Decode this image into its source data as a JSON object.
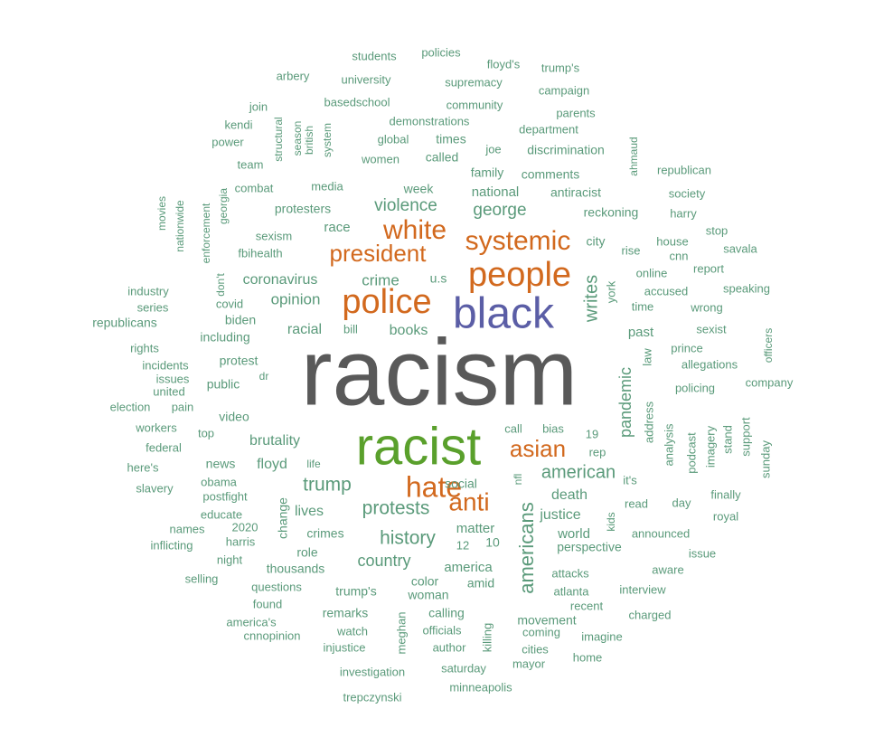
{
  "chart_data": {
    "type": "wordcloud",
    "colors": {
      "tier1": "#595959",
      "tier2": "#5aa02c",
      "tier3": "#5b5ea6",
      "tier4": "#d2691e",
      "small": "#5a9a7a"
    },
    "words": [
      {
        "text": "racism",
        "weight": 100,
        "tier": "tier1"
      },
      {
        "text": "racist",
        "weight": 60,
        "tier": "tier2"
      },
      {
        "text": "black",
        "weight": 52,
        "tier": "tier3"
      },
      {
        "text": "people",
        "weight": 40,
        "tier": "tier4"
      },
      {
        "text": "police",
        "weight": 40,
        "tier": "tier4"
      },
      {
        "text": "systemic",
        "weight": 33,
        "tier": "tier4"
      },
      {
        "text": "white",
        "weight": 33,
        "tier": "tier4"
      },
      {
        "text": "president",
        "weight": 28,
        "tier": "tier4"
      },
      {
        "text": "hate",
        "weight": 33,
        "tier": "tier4"
      },
      {
        "text": "anti",
        "weight": 30,
        "tier": "tier4"
      },
      {
        "text": "asian",
        "weight": 30,
        "tier": "tier4"
      },
      {
        "text": "american",
        "weight": 20,
        "tier": "small"
      },
      {
        "text": "americans",
        "weight": 22,
        "tier": "small"
      },
      {
        "text": "protests",
        "weight": 22,
        "tier": "small"
      },
      {
        "text": "history",
        "weight": 22,
        "tier": "small"
      },
      {
        "text": "trump",
        "weight": 22,
        "tier": "small"
      },
      {
        "text": "george",
        "weight": 20,
        "tier": "small"
      },
      {
        "text": "violence",
        "weight": 20,
        "tier": "small"
      },
      {
        "text": "writes",
        "weight": 20,
        "tier": "small"
      },
      {
        "text": "pandemic",
        "weight": 18,
        "tier": "small"
      },
      {
        "text": "country",
        "weight": 18,
        "tier": "small"
      },
      {
        "text": "crime",
        "weight": 18,
        "tier": "small"
      },
      {
        "text": "opinion",
        "weight": 18,
        "tier": "small"
      },
      {
        "text": "coronavirus",
        "weight": 18,
        "tier": "small"
      },
      {
        "text": "racial",
        "weight": 18,
        "tier": "small"
      },
      {
        "text": "books",
        "weight": 17,
        "tier": "small"
      },
      {
        "text": "brutality",
        "weight": 17,
        "tier": "small"
      },
      {
        "text": "floyd",
        "weight": 17,
        "tier": "small"
      },
      {
        "text": "lives",
        "weight": 17,
        "tier": "small"
      },
      {
        "text": "death",
        "weight": 17,
        "tier": "small"
      },
      {
        "text": "justice",
        "weight": 16,
        "tier": "small"
      },
      {
        "text": "matter",
        "weight": 16,
        "tier": "small"
      },
      {
        "text": "america",
        "weight": 16,
        "tier": "small"
      },
      {
        "text": "world",
        "weight": 16,
        "tier": "small"
      },
      {
        "text": "past",
        "weight": 16,
        "tier": "small"
      },
      {
        "text": "race",
        "weight": 16,
        "tier": "small"
      },
      {
        "text": "national",
        "weight": 16,
        "tier": "small"
      },
      {
        "text": "week",
        "weight": 15,
        "tier": "small"
      },
      {
        "text": "protesters",
        "weight": 15,
        "tier": "small"
      },
      {
        "text": "reckoning",
        "weight": 15,
        "tier": "small"
      },
      {
        "text": "u.s",
        "weight": 15,
        "tier": "small"
      },
      {
        "text": "city",
        "weight": 15,
        "tier": "small"
      },
      {
        "text": "crimes",
        "weight": 15,
        "tier": "small"
      },
      {
        "text": "woman",
        "weight": 15,
        "tier": "small"
      },
      {
        "text": "color",
        "weight": 15,
        "tier": "small"
      },
      {
        "text": "thousands",
        "weight": 15,
        "tier": "small"
      },
      {
        "text": "perspective",
        "weight": 15,
        "tier": "small"
      },
      {
        "text": "social",
        "weight": 15,
        "tier": "small"
      },
      {
        "text": "change",
        "weight": 15,
        "tier": "small"
      },
      {
        "text": "10",
        "weight": 15,
        "tier": "small"
      },
      {
        "text": "12",
        "weight": 13,
        "tier": "small"
      },
      {
        "text": "public",
        "weight": 14,
        "tier": "small"
      },
      {
        "text": "protest",
        "weight": 14,
        "tier": "small"
      },
      {
        "text": "video",
        "weight": 14,
        "tier": "small"
      },
      {
        "text": "news",
        "weight": 14,
        "tier": "small"
      },
      {
        "text": "life",
        "weight": 13,
        "tier": "small"
      },
      {
        "text": "calling",
        "weight": 14,
        "tier": "small"
      },
      {
        "text": "amid",
        "weight": 14,
        "tier": "small"
      },
      {
        "text": "remarks",
        "weight": 14,
        "tier": "small"
      },
      {
        "text": "trump's",
        "weight": 14,
        "tier": "small"
      },
      {
        "text": "role",
        "weight": 14,
        "tier": "small"
      },
      {
        "text": "movement",
        "weight": 14,
        "tier": "small"
      },
      {
        "text": "officials",
        "weight": 14,
        "tier": "small"
      },
      {
        "text": "watch",
        "weight": 14,
        "tier": "small"
      },
      {
        "text": "attacks",
        "weight": 14,
        "tier": "small"
      },
      {
        "text": "atlanta",
        "weight": 14,
        "tier": "small"
      },
      {
        "text": "recent",
        "weight": 14,
        "tier": "small"
      },
      {
        "text": "interview",
        "weight": 14,
        "tier": "small"
      },
      {
        "text": "announced",
        "weight": 14,
        "tier": "small"
      },
      {
        "text": "read",
        "weight": 14,
        "tier": "small"
      },
      {
        "text": "day",
        "weight": 14,
        "tier": "small"
      },
      {
        "text": "finally",
        "weight": 13,
        "tier": "small"
      },
      {
        "text": "royal",
        "weight": 13,
        "tier": "small"
      },
      {
        "text": "issue",
        "weight": 13,
        "tier": "small"
      },
      {
        "text": "aware",
        "weight": 13,
        "tier": "small"
      },
      {
        "text": "charged",
        "weight": 13,
        "tier": "small"
      },
      {
        "text": "imagine",
        "weight": 13,
        "tier": "small"
      },
      {
        "text": "home",
        "weight": 13,
        "tier": "small"
      },
      {
        "text": "cities",
        "weight": 13,
        "tier": "small"
      },
      {
        "text": "mayor",
        "weight": 13,
        "tier": "small"
      },
      {
        "text": "coming",
        "weight": 13,
        "tier": "small"
      },
      {
        "text": "saturday",
        "weight": 13,
        "tier": "small"
      },
      {
        "text": "author",
        "weight": 13,
        "tier": "small"
      },
      {
        "text": "killing",
        "weight": 13,
        "tier": "small"
      },
      {
        "text": "meghan",
        "weight": 13,
        "tier": "small"
      },
      {
        "text": "injustice",
        "weight": 13,
        "tier": "small"
      },
      {
        "text": "investigation",
        "weight": 13,
        "tier": "small"
      },
      {
        "text": "minneapolis",
        "weight": 13,
        "tier": "small"
      },
      {
        "text": "trepczynski",
        "weight": 13,
        "tier": "small"
      },
      {
        "text": "cnnopinion",
        "weight": 13,
        "tier": "small"
      },
      {
        "text": "america's",
        "weight": 13,
        "tier": "small"
      },
      {
        "text": "found",
        "weight": 13,
        "tier": "small"
      },
      {
        "text": "questions",
        "weight": 13,
        "tier": "small"
      },
      {
        "text": "selling",
        "weight": 13,
        "tier": "small"
      },
      {
        "text": "night",
        "weight": 13,
        "tier": "small"
      },
      {
        "text": "harris",
        "weight": 13,
        "tier": "small"
      },
      {
        "text": "2020",
        "weight": 13,
        "tier": "small"
      },
      {
        "text": "inflicting",
        "weight": 13,
        "tier": "small"
      },
      {
        "text": "names",
        "weight": 13,
        "tier": "small"
      },
      {
        "text": "educate",
        "weight": 13,
        "tier": "small"
      },
      {
        "text": "postfight",
        "weight": 13,
        "tier": "small"
      },
      {
        "text": "obama",
        "weight": 13,
        "tier": "small"
      },
      {
        "text": "slavery",
        "weight": 13,
        "tier": "small"
      },
      {
        "text": "here's",
        "weight": 13,
        "tier": "small"
      },
      {
        "text": "federal",
        "weight": 13,
        "tier": "small"
      },
      {
        "text": "workers",
        "weight": 13,
        "tier": "small"
      },
      {
        "text": "top",
        "weight": 13,
        "tier": "small"
      },
      {
        "text": "election",
        "weight": 13,
        "tier": "small"
      },
      {
        "text": "pain",
        "weight": 13,
        "tier": "small"
      },
      {
        "text": "united",
        "weight": 13,
        "tier": "small"
      },
      {
        "text": "issues",
        "weight": 13,
        "tier": "small"
      },
      {
        "text": "incidents",
        "weight": 13,
        "tier": "small"
      },
      {
        "text": "rights",
        "weight": 13,
        "tier": "small"
      },
      {
        "text": "dr",
        "weight": 13,
        "tier": "small"
      },
      {
        "text": "including",
        "weight": 13,
        "tier": "small"
      },
      {
        "text": "biden",
        "weight": 13,
        "tier": "small"
      },
      {
        "text": "republicans",
        "weight": 13,
        "tier": "small"
      },
      {
        "text": "series",
        "weight": 13,
        "tier": "small"
      },
      {
        "text": "covid",
        "weight": 13,
        "tier": "small"
      },
      {
        "text": "industry",
        "weight": 13,
        "tier": "small"
      },
      {
        "text": "bill",
        "weight": 13,
        "tier": "small"
      },
      {
        "text": "don't",
        "weight": 12,
        "tier": "small"
      },
      {
        "text": "enforcement",
        "weight": 12,
        "tier": "small"
      },
      {
        "text": "fbihealth",
        "weight": 13,
        "tier": "small"
      },
      {
        "text": "sexism",
        "weight": 13,
        "tier": "small"
      },
      {
        "text": "georgia",
        "weight": 12,
        "tier": "small"
      },
      {
        "text": "nationwide",
        "weight": 12,
        "tier": "small"
      },
      {
        "text": "movies",
        "weight": 12,
        "tier": "small"
      },
      {
        "text": "combat",
        "weight": 13,
        "tier": "small"
      },
      {
        "text": "media",
        "weight": 14,
        "tier": "small"
      },
      {
        "text": "team",
        "weight": 13,
        "tier": "small"
      },
      {
        "text": "power",
        "weight": 13,
        "tier": "small"
      },
      {
        "text": "kendi",
        "weight": 13,
        "tier": "small"
      },
      {
        "text": "join",
        "weight": 13,
        "tier": "small"
      },
      {
        "text": "arbery",
        "weight": 13,
        "tier": "small"
      },
      {
        "text": "structural",
        "weight": 12,
        "tier": "small"
      },
      {
        "text": "season",
        "weight": 12,
        "tier": "small"
      },
      {
        "text": "british",
        "weight": 12,
        "tier": "small"
      },
      {
        "text": "system",
        "weight": 12,
        "tier": "small"
      },
      {
        "text": "women",
        "weight": 13,
        "tier": "small"
      },
      {
        "text": "global",
        "weight": 13,
        "tier": "small"
      },
      {
        "text": "demonstrations",
        "weight": 13,
        "tier": "small"
      },
      {
        "text": "basedschool",
        "weight": 13,
        "tier": "small"
      },
      {
        "text": "university",
        "weight": 13,
        "tier": "small"
      },
      {
        "text": "students",
        "weight": 13,
        "tier": "small"
      },
      {
        "text": "policies",
        "weight": 13,
        "tier": "small"
      },
      {
        "text": "supremacy",
        "weight": 13,
        "tier": "small"
      },
      {
        "text": "community",
        "weight": 13,
        "tier": "small"
      },
      {
        "text": "times",
        "weight": 13,
        "tier": "small"
      },
      {
        "text": "called",
        "weight": 14,
        "tier": "small"
      },
      {
        "text": "family",
        "weight": 14,
        "tier": "small"
      },
      {
        "text": "joe",
        "weight": 13,
        "tier": "small"
      },
      {
        "text": "department",
        "weight": 13,
        "tier": "small"
      },
      {
        "text": "discrimination",
        "weight": 14,
        "tier": "small"
      },
      {
        "text": "comments",
        "weight": 14,
        "tier": "small"
      },
      {
        "text": "antiracist",
        "weight": 14,
        "tier": "small"
      },
      {
        "text": "floyd's",
        "weight": 13,
        "tier": "small"
      },
      {
        "text": "trump's",
        "weight": 13,
        "tier": "small"
      },
      {
        "text": "campaign",
        "weight": 13,
        "tier": "small"
      },
      {
        "text": "parents",
        "weight": 13,
        "tier": "small"
      },
      {
        "text": "ahmaud",
        "weight": 12,
        "tier": "small"
      },
      {
        "text": "republican",
        "weight": 13,
        "tier": "small"
      },
      {
        "text": "society",
        "weight": 13,
        "tier": "small"
      },
      {
        "text": "harry",
        "weight": 13,
        "tier": "small"
      },
      {
        "text": "stop",
        "weight": 13,
        "tier": "small"
      },
      {
        "text": "savala",
        "weight": 13,
        "tier": "small"
      },
      {
        "text": "house",
        "weight": 13,
        "tier": "small"
      },
      {
        "text": "cnn",
        "weight": 13,
        "tier": "small"
      },
      {
        "text": "rise",
        "weight": 13,
        "tier": "small"
      },
      {
        "text": "report",
        "weight": 13,
        "tier": "small"
      },
      {
        "text": "online",
        "weight": 13,
        "tier": "small"
      },
      {
        "text": "speaking",
        "weight": 13,
        "tier": "small"
      },
      {
        "text": "accused",
        "weight": 13,
        "tier": "small"
      },
      {
        "text": "york",
        "weight": 13,
        "tier": "small"
      },
      {
        "text": "time",
        "weight": 13,
        "tier": "small"
      },
      {
        "text": "wrong",
        "weight": 13,
        "tier": "small"
      },
      {
        "text": "sexist",
        "weight": 13,
        "tier": "small"
      },
      {
        "text": "prince",
        "weight": 13,
        "tier": "small"
      },
      {
        "text": "law",
        "weight": 13,
        "tier": "small"
      },
      {
        "text": "allegations",
        "weight": 13,
        "tier": "small"
      },
      {
        "text": "officers",
        "weight": 12,
        "tier": "small"
      },
      {
        "text": "company",
        "weight": 13,
        "tier": "small"
      },
      {
        "text": "policing",
        "weight": 13,
        "tier": "small"
      },
      {
        "text": "address",
        "weight": 13,
        "tier": "small"
      },
      {
        "text": "analysis",
        "weight": 13,
        "tier": "small"
      },
      {
        "text": "podcast",
        "weight": 13,
        "tier": "small"
      },
      {
        "text": "imagery",
        "weight": 13,
        "tier": "small"
      },
      {
        "text": "stand",
        "weight": 13,
        "tier": "small"
      },
      {
        "text": "support",
        "weight": 13,
        "tier": "small"
      },
      {
        "text": "sunday",
        "weight": 13,
        "tier": "small"
      },
      {
        "text": "call",
        "weight": 13,
        "tier": "small"
      },
      {
        "text": "bias",
        "weight": 13,
        "tier": "small"
      },
      {
        "text": "19",
        "weight": 13,
        "tier": "small"
      },
      {
        "text": "rep",
        "weight": 13,
        "tier": "small"
      },
      {
        "text": "nfl",
        "weight": 12,
        "tier": "small"
      },
      {
        "text": "it's",
        "weight": 13,
        "tier": "small"
      },
      {
        "text": "kids",
        "weight": 12,
        "tier": "small"
      }
    ]
  }
}
